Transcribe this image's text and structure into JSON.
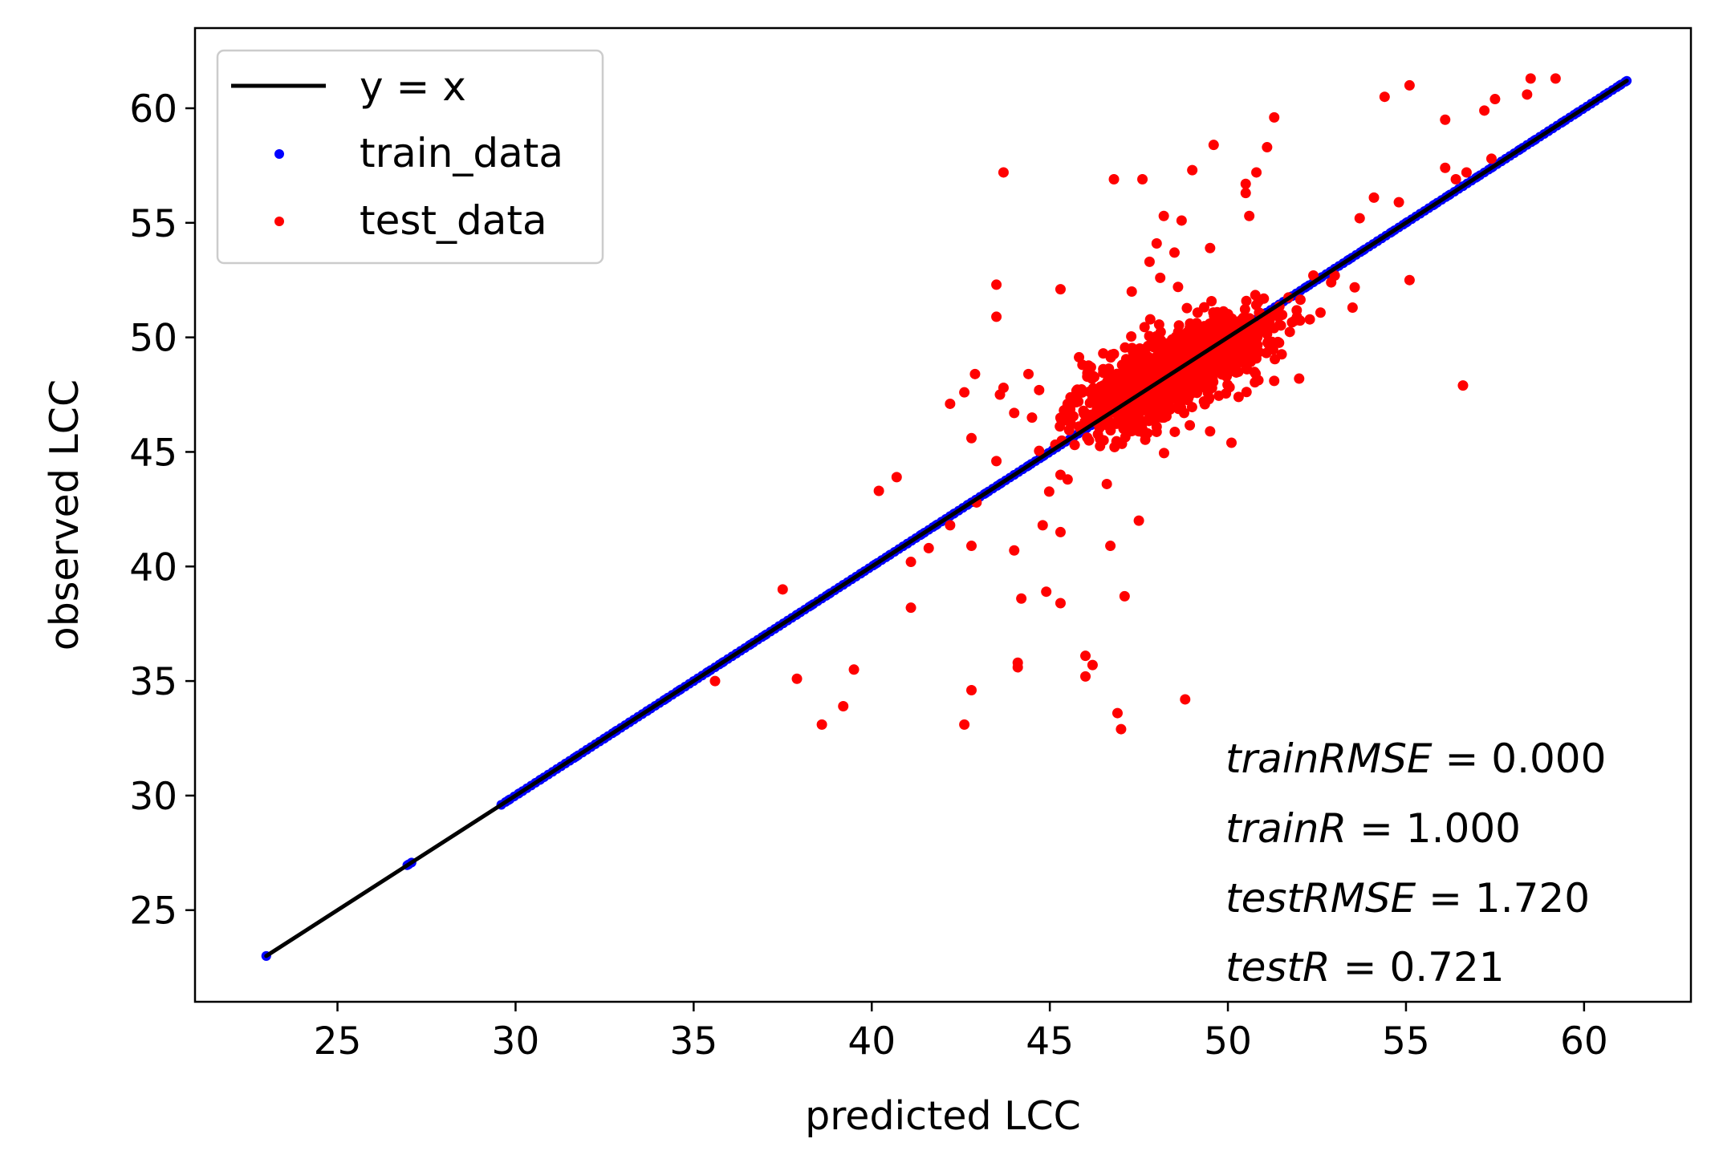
{
  "chart_data": {
    "type": "scatter",
    "title": "",
    "xlabel": "predicted LCC",
    "ylabel": "observed LCC",
    "xlim": [
      21,
      63
    ],
    "ylim": [
      21,
      63.5
    ],
    "xticks": [
      25,
      30,
      35,
      40,
      45,
      50,
      55,
      60
    ],
    "yticks": [
      25,
      30,
      35,
      40,
      45,
      50,
      55,
      60
    ],
    "grid": false,
    "legend_position": "top-left",
    "colors": {
      "reference_line": "#000000",
      "train": "#0000ff",
      "test": "#ff0000"
    },
    "reference_line": {
      "name": "y = x",
      "x": [
        23.0,
        61.2
      ],
      "y": [
        23.0,
        61.2
      ]
    },
    "series": [
      {
        "name": "train_data",
        "points": [
          [
            23.0,
            23.0
          ],
          [
            27.0,
            27.0
          ],
          [
            29.6,
            29.6
          ],
          [
            29.8,
            29.8
          ],
          [
            30.1,
            30.1
          ],
          [
            30.7,
            30.7
          ],
          [
            31.7,
            31.7
          ],
          [
            32.0,
            32.0
          ],
          [
            32.5,
            32.5
          ],
          [
            32.8,
            32.8
          ],
          [
            33.2,
            33.2
          ],
          [
            33.7,
            33.7
          ],
          [
            34.2,
            34.2
          ],
          [
            34.6,
            34.6
          ],
          [
            35.0,
            35.0
          ],
          [
            35.4,
            35.4
          ],
          [
            35.8,
            35.8
          ],
          [
            36.2,
            36.2
          ],
          [
            36.6,
            36.6
          ],
          [
            37.0,
            37.0
          ],
          [
            37.4,
            37.4
          ],
          [
            37.9,
            37.9
          ],
          [
            38.3,
            38.3
          ],
          [
            38.8,
            38.8
          ],
          [
            39.2,
            39.2
          ],
          [
            39.7,
            39.7
          ],
          [
            40.1,
            40.1
          ],
          [
            40.5,
            40.5
          ],
          [
            41.0,
            41.0
          ],
          [
            41.4,
            41.4
          ],
          [
            41.8,
            41.8
          ],
          [
            42.3,
            42.3
          ],
          [
            42.7,
            42.7
          ],
          [
            43.2,
            43.2
          ],
          [
            43.6,
            43.6
          ],
          [
            44.0,
            44.0
          ],
          [
            44.4,
            44.4
          ],
          [
            44.8,
            44.8
          ],
          [
            45.2,
            45.2
          ],
          [
            45.6,
            45.6
          ],
          [
            46.0,
            46.0
          ],
          [
            46.4,
            46.4
          ],
          [
            51.8,
            51.8
          ],
          [
            52.2,
            52.2
          ],
          [
            52.6,
            52.6
          ],
          [
            53.0,
            53.0
          ],
          [
            53.4,
            53.4
          ],
          [
            53.8,
            53.8
          ],
          [
            54.2,
            54.2
          ],
          [
            54.6,
            54.6
          ],
          [
            55.0,
            55.0
          ],
          [
            55.4,
            55.4
          ],
          [
            55.8,
            55.8
          ],
          [
            56.2,
            56.2
          ],
          [
            56.6,
            56.6
          ],
          [
            57.0,
            57.0
          ],
          [
            57.4,
            57.4
          ],
          [
            57.8,
            57.8
          ],
          [
            58.2,
            58.2
          ],
          [
            58.6,
            58.6
          ],
          [
            59.0,
            59.0
          ],
          [
            59.4,
            59.4
          ],
          [
            59.8,
            59.8
          ],
          [
            60.2,
            60.2
          ],
          [
            60.6,
            60.6
          ],
          [
            61.0,
            61.0
          ],
          [
            61.2,
            61.2
          ]
        ]
      },
      {
        "name": "test_data",
        "points": [
          [
            43.7,
            57.2
          ],
          [
            43.5,
            52.3
          ],
          [
            43.5,
            50.9
          ],
          [
            45.3,
            52.1
          ],
          [
            44.4,
            48.4
          ],
          [
            42.9,
            48.4
          ],
          [
            43.7,
            47.8
          ],
          [
            44.7,
            47.7
          ],
          [
            42.2,
            47.1
          ],
          [
            42.6,
            47.6
          ],
          [
            43.6,
            47.5
          ],
          [
            44.0,
            46.7
          ],
          [
            44.5,
            46.5
          ],
          [
            45.6,
            46.2
          ],
          [
            43.5,
            44.6
          ],
          [
            42.8,
            45.6
          ],
          [
            45.3,
            44.0
          ],
          [
            45.5,
            43.8
          ],
          [
            46.6,
            43.6
          ],
          [
            40.7,
            43.9
          ],
          [
            40.2,
            43.3
          ],
          [
            44.8,
            41.8
          ],
          [
            45.3,
            41.5
          ],
          [
            44.0,
            40.7
          ],
          [
            42.2,
            41.8
          ],
          [
            41.6,
            40.8
          ],
          [
            42.8,
            40.9
          ],
          [
            46.7,
            40.9
          ],
          [
            47.5,
            42.0
          ],
          [
            41.1,
            40.2
          ],
          [
            41.1,
            38.2
          ],
          [
            44.2,
            38.6
          ],
          [
            44.9,
            38.9
          ],
          [
            45.3,
            38.4
          ],
          [
            47.1,
            38.7
          ],
          [
            37.5,
            39.0
          ],
          [
            35.6,
            35.0
          ],
          [
            37.9,
            35.1
          ],
          [
            39.5,
            35.5
          ],
          [
            39.2,
            33.9
          ],
          [
            38.6,
            33.1
          ],
          [
            42.8,
            34.6
          ],
          [
            42.6,
            33.1
          ],
          [
            44.1,
            35.8
          ],
          [
            44.1,
            35.6
          ],
          [
            46.0,
            36.1
          ],
          [
            46.2,
            35.7
          ],
          [
            46.0,
            35.2
          ],
          [
            46.9,
            33.6
          ],
          [
            47.0,
            32.9
          ],
          [
            48.8,
            34.2
          ],
          [
            46.8,
            56.9
          ],
          [
            47.6,
            56.9
          ],
          [
            49.0,
            57.3
          ],
          [
            49.6,
            58.4
          ],
          [
            50.5,
            56.7
          ],
          [
            50.5,
            56.3
          ],
          [
            50.6,
            55.3
          ],
          [
            48.2,
            55.3
          ],
          [
            48.7,
            55.1
          ],
          [
            51.1,
            58.3
          ],
          [
            51.3,
            59.6
          ],
          [
            50.8,
            57.2
          ],
          [
            49.5,
            53.9
          ],
          [
            54.1,
            56.1
          ],
          [
            53.7,
            55.2
          ],
          [
            54.8,
            55.9
          ],
          [
            54.4,
            60.5
          ],
          [
            55.1,
            61.0
          ],
          [
            56.1,
            57.4
          ],
          [
            56.1,
            59.5
          ],
          [
            56.4,
            56.9
          ],
          [
            56.7,
            57.2
          ],
          [
            57.2,
            59.9
          ],
          [
            57.5,
            60.4
          ],
          [
            57.4,
            57.8
          ],
          [
            58.5,
            61.3
          ],
          [
            59.2,
            61.3
          ],
          [
            58.4,
            60.6
          ],
          [
            55.1,
            52.5
          ],
          [
            53.5,
            51.3
          ],
          [
            52.4,
            52.7
          ],
          [
            53.0,
            52.7
          ],
          [
            52.9,
            52.4
          ],
          [
            51.3,
            48.1
          ],
          [
            52.0,
            48.2
          ],
          [
            56.6,
            47.9
          ],
          [
            50.3,
            47.4
          ],
          [
            49.5,
            45.9
          ],
          [
            50.1,
            45.4
          ],
          [
            48.0,
            54.1
          ],
          [
            48.5,
            53.7
          ],
          [
            47.8,
            53.3
          ],
          [
            48.1,
            52.6
          ],
          [
            47.3,
            52.0
          ],
          [
            48.6,
            52.2
          ],
          [
            49.7,
            51.1
          ],
          [
            50.7,
            50.6
          ],
          [
            48.2,
            46.5
          ],
          [
            46.6,
            46.3
          ],
          [
            45.8,
            47.2
          ],
          [
            46.3,
            47.7
          ],
          [
            45.5,
            47.1
          ],
          [
            46.1,
            45.5
          ],
          [
            47.2,
            46.4
          ],
          [
            47.5,
            45.9
          ],
          [
            48.0,
            46.1
          ],
          [
            48.4,
            46.9
          ],
          [
            47.4,
            49.0
          ],
          [
            46.5,
            49.3
          ],
          [
            46.1,
            48.6
          ],
          [
            46.8,
            47.0
          ]
        ],
        "cluster_center": [
          48.5,
          48.5
        ],
        "cluster_spread": [
          1.3,
          1.2
        ],
        "cluster_count": 1300
      }
    ],
    "annotations": [
      {
        "italic": "trainRMSE",
        "rest": " = 0.000"
      },
      {
        "italic": "trainR",
        "rest": " = 1.000"
      },
      {
        "italic": "testRMSE",
        "rest": " = 1.720"
      },
      {
        "italic": "testR",
        "rest": " = 0.721"
      }
    ]
  }
}
